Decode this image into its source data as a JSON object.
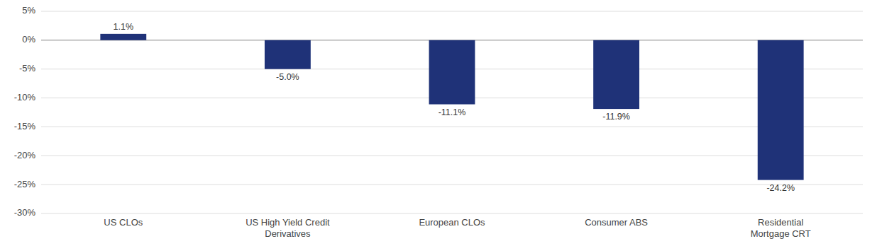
{
  "chart_data": {
    "type": "bar",
    "categories": [
      "US CLOs",
      "US High Yield Credit\nDerivatives",
      "European CLOs",
      "Consumer ABS",
      "Residential\nMortgage CRT"
    ],
    "values": [
      1.1,
      -5.0,
      -11.1,
      -11.9,
      -24.2
    ],
    "value_labels": [
      "1.1%",
      "-5.0%",
      "-11.1%",
      "-11.9%",
      "-24.2%"
    ],
    "data_labels": true,
    "color": "#1f3278",
    "ylim": [
      -30,
      5
    ],
    "yticks": [
      {
        "value": 5,
        "label": "5%"
      },
      {
        "value": 0,
        "label": "0%"
      },
      {
        "value": -5,
        "label": "-5%"
      },
      {
        "value": -10,
        "label": "-10%"
      },
      {
        "value": -15,
        "label": "-15%"
      },
      {
        "value": -20,
        "label": "-20%"
      },
      {
        "value": -25,
        "label": "-25%"
      },
      {
        "value": -30,
        "label": "-30%"
      }
    ],
    "grid": true
  }
}
